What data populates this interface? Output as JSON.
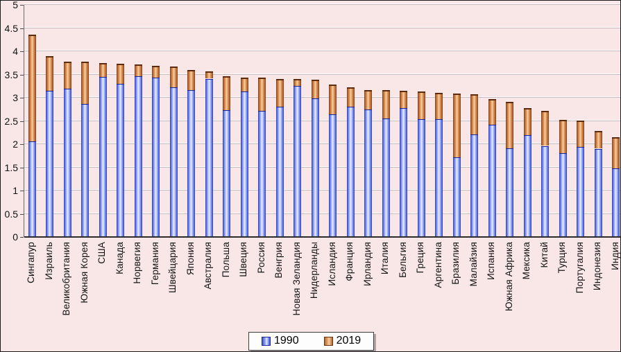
{
  "chart_data": {
    "type": "bar",
    "subtype": "overlay-column-1990-inside-2019",
    "title": "",
    "xlabel": "",
    "ylabel": "",
    "ylim": [
      0,
      5
    ],
    "ytick_step": 0.5,
    "yticks": [
      "0",
      "0.5",
      "1",
      "1.5",
      "2",
      "2.5",
      "3",
      "3.5",
      "4",
      "4.5",
      "5"
    ],
    "grid": true,
    "legend_position": "bottom-center",
    "categories": [
      "Сингапур",
      "Израиль",
      "Великобритания",
      "Южная Корея",
      "США",
      "Канада",
      "Норвегия",
      "Германия",
      "Швейцария",
      "Япония",
      "Австралия",
      "Польша",
      "Швеция",
      "Россия",
      "Венгрия",
      "Новая Зеландия",
      "Нидерланды",
      "Исландия",
      "Франция",
      "Ирландия",
      "Италия",
      "Бельгия",
      "Греция",
      "Аргентина",
      "Бразилия",
      "Малайзия",
      "Испания",
      "Южная Африка",
      "Мексика",
      "Китай",
      "Турция",
      "Португалия",
      "Индонезия",
      "Индия"
    ],
    "series": [
      {
        "name": "1990",
        "color": "#2336cc",
        "values": [
          2.06,
          3.15,
          3.2,
          2.86,
          3.45,
          3.3,
          3.46,
          3.44,
          3.22,
          3.17,
          3.41,
          2.73,
          3.14,
          2.72,
          2.8,
          3.25,
          2.99,
          2.64,
          2.8,
          2.74,
          2.55,
          2.77,
          2.53,
          2.54,
          1.72,
          2.21,
          2.42,
          1.91,
          2.19,
          1.96,
          1.8,
          1.94,
          1.9,
          1.48
        ]
      },
      {
        "name": "2019",
        "color": "#d98f52",
        "values": [
          4.36,
          3.9,
          3.78,
          3.77,
          3.75,
          3.73,
          3.71,
          3.69,
          3.67,
          3.6,
          3.56,
          3.46,
          3.44,
          3.43,
          3.41,
          3.4,
          3.39,
          3.28,
          3.22,
          3.17,
          3.16,
          3.15,
          3.13,
          3.1,
          3.09,
          3.08,
          2.97,
          2.91,
          2.78,
          2.71,
          2.52,
          2.51,
          2.28,
          2.15
        ]
      }
    ],
    "colors": {
      "plot_background": "#f9e7e7",
      "gridline": "#c9bac0",
      "bar_blue_edge": "#2336cc",
      "bar_blue_center": "#eaeffd",
      "bar_orange_edge": "#7c3a14",
      "bar_orange_center": "#f7cfa4",
      "axis": "#2b2b2b",
      "text": "#111111"
    }
  },
  "legend": {
    "items": [
      {
        "label": "1990",
        "swatch": "blue-square-icon"
      },
      {
        "label": "2019",
        "swatch": "orange-square-icon"
      }
    ]
  }
}
